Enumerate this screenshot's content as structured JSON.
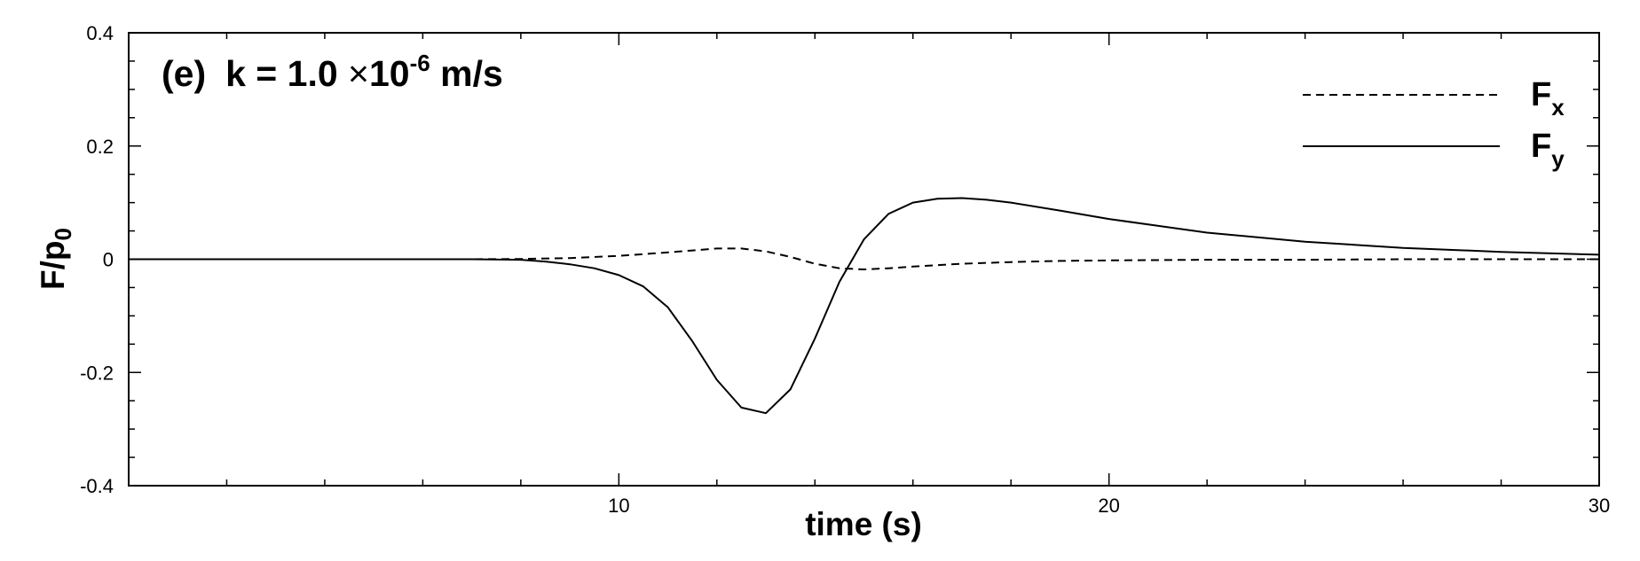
{
  "chart_data": {
    "type": "line",
    "title": "",
    "annotation": {
      "panel": "(e)",
      "k_prefix": "k = 1.0 ",
      "times": "×",
      "base": "10",
      "exponent": "-6",
      "unit": " m/s"
    },
    "xlabel": "time (s)",
    "ylabel": {
      "base": "F/p",
      "sub": "0"
    },
    "xlim": [
      0,
      30
    ],
    "ylim": [
      -0.4,
      0.4
    ],
    "x_ticks": [
      10,
      20,
      30
    ],
    "x_tick_labels": [
      "10",
      "20",
      "30"
    ],
    "y_ticks": [
      -0.4,
      -0.2,
      0,
      0.2,
      0.4
    ],
    "y_tick_labels": [
      "-0.4",
      "-0.2",
      "0",
      "0.2",
      "0.4"
    ],
    "grid": false,
    "legend_position": "top-right",
    "series": [
      {
        "name": "Fx",
        "label_base": "F",
        "label_sub": "x",
        "style": "dashed",
        "color": "#000000",
        "x": [
          0,
          7,
          8,
          9,
          10,
          11,
          12,
          12.5,
          13,
          13.5,
          14,
          14.5,
          15,
          15.5,
          16,
          17,
          18,
          19,
          20,
          22,
          24,
          26,
          28,
          30
        ],
        "y": [
          0,
          0,
          0.0005,
          0.002,
          0.006,
          0.012,
          0.019,
          0.019,
          0.014,
          0.004,
          -0.008,
          -0.016,
          -0.018,
          -0.016,
          -0.013,
          -0.008,
          -0.005,
          -0.003,
          -0.002,
          -0.001,
          -0.001,
          0,
          0,
          0
        ]
      },
      {
        "name": "Fy",
        "label_base": "F",
        "label_sub": "y",
        "style": "solid",
        "color": "#000000",
        "x": [
          0,
          7,
          8,
          8.5,
          9,
          9.5,
          10,
          10.5,
          11,
          11.5,
          12,
          12.5,
          13,
          13.5,
          14,
          14.5,
          15,
          15.5,
          16,
          16.5,
          17,
          17.5,
          18,
          19,
          20,
          22,
          24,
          26,
          28,
          30
        ],
        "y": [
          0,
          0,
          -0.001,
          -0.004,
          -0.009,
          -0.016,
          -0.028,
          -0.048,
          -0.085,
          -0.145,
          -0.213,
          -0.262,
          -0.272,
          -0.23,
          -0.14,
          -0.04,
          0.035,
          0.08,
          0.1,
          0.107,
          0.108,
          0.105,
          0.1,
          0.086,
          0.071,
          0.047,
          0.031,
          0.02,
          0.013,
          0.008
        ]
      }
    ]
  }
}
